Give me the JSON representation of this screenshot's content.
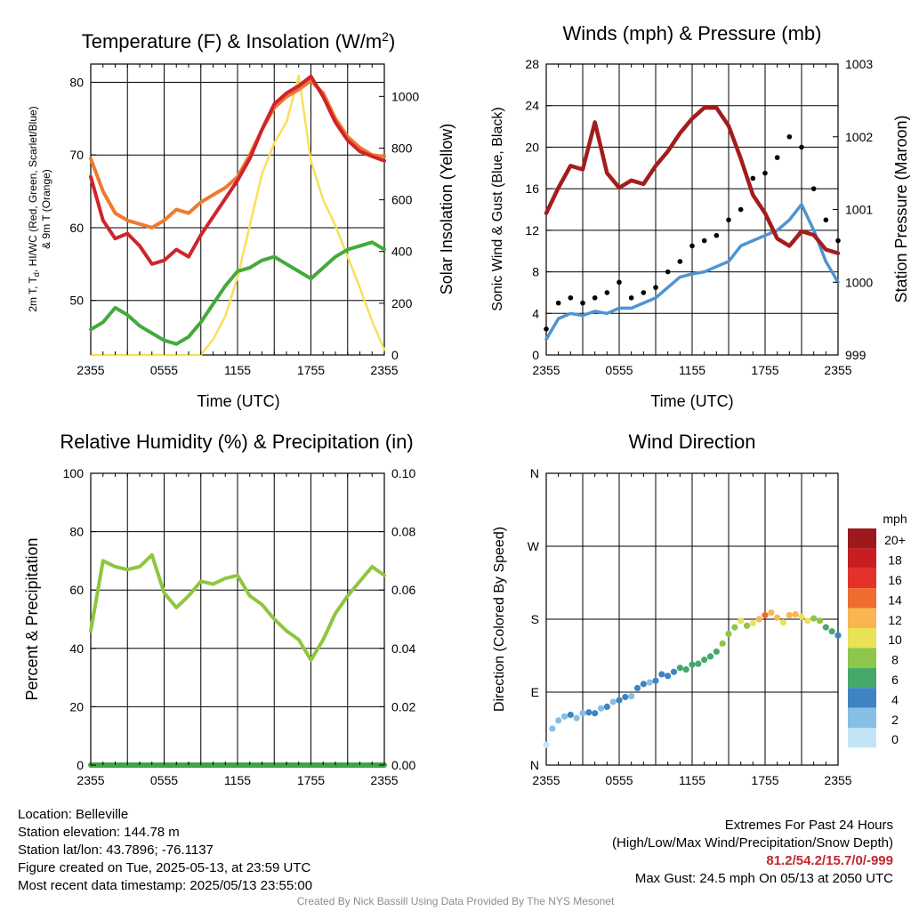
{
  "panels": {
    "temperature": {
      "title": "Temperature (F) & Insolation (W/m",
      "title_sup": "2",
      "title_close": ")",
      "ylabel_left_line1": "2m T, T",
      "ylabel_left_sub": "d",
      "ylabel_left_line1_rest": ", HI/WC (Red, Green, Scarlet/Blue)",
      "ylabel_left_line2": "& 9m T (Orange)",
      "ylabel_right": "Solar Insolation (Yellow)",
      "xlabel": "Time (UTC)"
    },
    "winds": {
      "title": "Winds (mph) & Pressure (mb)",
      "ylabel_left": "Sonic Wind & Gust (Blue, Black)",
      "ylabel_right": "Station Pressure (Maroon)",
      "xlabel": "Time (UTC)"
    },
    "humidity": {
      "title": "Relative Humidity (%) & Precipitation (in)",
      "ylabel_left": "Percent & Precipitation"
    },
    "wind_direction": {
      "title": "Wind Direction",
      "ylabel_left": "Direction (Colored By Speed)",
      "legend_title": "mph"
    }
  },
  "footer": {
    "location": "Location: Belleville",
    "elevation": "Station elevation: 144.78 m",
    "latlon": "Station lat/lon: 43.7896; -76.1137",
    "created": "Figure created on Tue, 2025-05-13, at 23:59 UTC",
    "recent": "Most recent data timestamp: 2025/05/13 23:55:00",
    "extremes_title": "Extremes For Past 24 Hours",
    "extremes_subtitle": "(High/Low/Max Wind/Precipitation/Snow Depth)",
    "extremes_values": "81.2/54.2/15.7/0/-999",
    "max_gust": "Max Gust: 24.5 mph On 05/13 at 2050 UTC",
    "credit": "Created By Nick Bassill Using Data Provided By The NYS Mesonet"
  },
  "colors": {
    "temp_red": "#d0242b",
    "temp_orange": "#ee7a30",
    "dewpoint_green": "#44aa3c",
    "insolation_yellow": "#f7e05a",
    "wind_blue": "#4e94d2",
    "gust_black": "#000000",
    "pressure_maroon": "#a31d1d",
    "rh_green": "#8ec641",
    "precip_green": "#3fa648",
    "grid": "#000000"
  },
  "chart_data": [
    {
      "id": "temperature",
      "type": "line",
      "x_ticks": [
        "2355",
        "0555",
        "1155",
        "1755",
        "2355"
      ],
      "x_range_hours": [
        0,
        24
      ],
      "ylim_left": [
        42.5,
        82.5
      ],
      "yticks_left": [
        50,
        60,
        70,
        80
      ],
      "ylim_right": [
        0,
        1125
      ],
      "yticks_right": [
        0,
        200,
        400,
        600,
        800,
        1000
      ],
      "grid": true,
      "series": [
        {
          "axis": "left",
          "color": "#d0242b",
          "x": [
            0,
            1,
            2,
            3,
            4,
            5,
            6,
            7,
            8,
            9,
            10,
            11,
            12,
            13,
            14,
            15,
            16,
            17,
            18,
            19,
            20,
            21,
            22,
            23,
            24
          ],
          "values": [
            67,
            61,
            58.5,
            59.2,
            57.5,
            55,
            55.5,
            57,
            56,
            59,
            61.5,
            64,
            66.5,
            69.5,
            73.5,
            77,
            78.5,
            79.5,
            80.8,
            78,
            74.5,
            72,
            70.5,
            69.8,
            69.2
          ]
        },
        {
          "axis": "left",
          "color": "#ee7a30",
          "x": [
            0,
            1,
            2,
            3,
            4,
            5,
            6,
            7,
            8,
            9,
            10,
            11,
            12,
            13,
            14,
            15,
            16,
            17,
            18,
            19,
            20,
            21,
            22,
            23,
            24
          ],
          "values": [
            69.5,
            65,
            62,
            61,
            60.5,
            60,
            61,
            62.5,
            62,
            63.5,
            64.5,
            65.5,
            67,
            70,
            73.5,
            76.5,
            78,
            79,
            80.2,
            78.5,
            75,
            72.5,
            71,
            70,
            69.8
          ]
        },
        {
          "axis": "left",
          "color": "#44aa3c",
          "x": [
            0,
            1,
            2,
            3,
            4,
            5,
            6,
            7,
            8,
            9,
            10,
            11,
            12,
            13,
            14,
            15,
            16,
            17,
            18,
            19,
            20,
            21,
            22,
            23,
            24
          ],
          "values": [
            46,
            47,
            49,
            48,
            46.5,
            45.5,
            44.5,
            44,
            45,
            47,
            49.5,
            52,
            54,
            54.5,
            55.5,
            56,
            55,
            54,
            53,
            54.5,
            56,
            57,
            57.5,
            58,
            57
          ]
        },
        {
          "axis": "right",
          "color": "#f7e05a",
          "x": [
            0,
            1,
            2,
            3,
            4,
            5,
            6,
            7,
            8,
            9,
            10,
            11,
            12,
            13,
            14,
            15,
            16,
            17,
            18,
            19,
            20,
            21,
            22,
            23,
            24
          ],
          "values": [
            0,
            0,
            0,
            0,
            0,
            0,
            0,
            0,
            0,
            0,
            60,
            150,
            300,
            500,
            700,
            820,
            900,
            1080,
            750,
            600,
            500,
            380,
            260,
            130,
            20
          ]
        }
      ]
    },
    {
      "id": "winds",
      "type": "line",
      "x_ticks": [
        "2355",
        "0555",
        "1155",
        "1755",
        "2355"
      ],
      "x_range_hours": [
        0,
        24
      ],
      "ylim_left": [
        0,
        28
      ],
      "yticks_left": [
        0,
        4,
        8,
        12,
        16,
        20,
        24,
        28
      ],
      "ylim_right": [
        999,
        1003
      ],
      "yticks_right": [
        999,
        1000,
        1001,
        1002,
        1003
      ],
      "grid": true,
      "series": [
        {
          "axis": "left",
          "color": "#4e94d2",
          "style": "line",
          "x": [
            0,
            1,
            2,
            3,
            4,
            5,
            6,
            7,
            8,
            9,
            10,
            11,
            12,
            13,
            14,
            15,
            16,
            17,
            18,
            19,
            20,
            21,
            22,
            23,
            24
          ],
          "values": [
            1.5,
            3.5,
            4,
            3.8,
            4.2,
            4,
            4.5,
            4.5,
            5,
            5.5,
            6.5,
            7.5,
            7.8,
            8,
            8.5,
            9,
            10.5,
            11,
            11.5,
            12,
            13,
            14.5,
            12,
            9,
            7
          ]
        },
        {
          "axis": "left",
          "color": "#000000",
          "style": "points",
          "x": [
            0,
            1,
            2,
            3,
            4,
            5,
            6,
            7,
            8,
            9,
            10,
            11,
            12,
            13,
            14,
            15,
            16,
            17,
            18,
            19,
            20,
            21,
            22,
            23,
            24
          ],
          "values": [
            2.5,
            5,
            5.5,
            5,
            5.5,
            6,
            7,
            5.5,
            6,
            6.5,
            8,
            9,
            10.5,
            11,
            11.5,
            13,
            14,
            17,
            17.5,
            19,
            21,
            20,
            16,
            13,
            11
          ]
        },
        {
          "axis": "right",
          "color": "#a31d1d",
          "style": "line",
          "x": [
            0,
            1,
            2,
            3,
            4,
            5,
            6,
            7,
            8,
            9,
            10,
            11,
            12,
            13,
            14,
            15,
            16,
            17,
            18,
            19,
            20,
            21,
            22,
            23,
            24
          ],
          "values": [
            1000.95,
            1001.3,
            1001.6,
            1001.55,
            1002.2,
            1001.5,
            1001.3,
            1001.4,
            1001.35,
            1001.6,
            1001.8,
            1002.05,
            1002.25,
            1002.4,
            1002.4,
            1002.15,
            1001.7,
            1001.2,
            1000.95,
            1000.6,
            1000.5,
            1000.7,
            1000.65,
            1000.45,
            1000.4
          ]
        }
      ]
    },
    {
      "id": "humidity",
      "type": "line",
      "x_ticks": [
        "2355",
        "0555",
        "1155",
        "1755",
        "2355"
      ],
      "x_range_hours": [
        0,
        24
      ],
      "ylim_left": [
        0,
        100
      ],
      "yticks_left": [
        0,
        20,
        40,
        60,
        80,
        100
      ],
      "ylim_right": [
        0,
        0.1
      ],
      "yticks_right": [
        "0.00",
        "0.02",
        "0.04",
        "0.06",
        "0.08",
        "0.10"
      ],
      "grid": true,
      "series": [
        {
          "axis": "left",
          "color": "#8ec641",
          "x": [
            0,
            1,
            2,
            3,
            4,
            5,
            6,
            7,
            8,
            9,
            10,
            11,
            12,
            13,
            14,
            15,
            16,
            17,
            18,
            19,
            20,
            21,
            22,
            23,
            24
          ],
          "values": [
            46,
            70,
            68,
            67,
            68,
            72,
            59,
            54,
            58,
            63,
            62,
            64,
            65,
            58,
            55,
            50,
            46,
            43,
            36,
            43,
            52,
            58,
            63,
            68,
            65
          ]
        },
        {
          "axis": "right",
          "color": "#3fa648",
          "x": [
            0,
            24
          ],
          "values": [
            0,
            0
          ]
        }
      ]
    },
    {
      "id": "wind_direction",
      "type": "scatter",
      "x_ticks": [
        "2355",
        "0555",
        "1155",
        "1755",
        "2355"
      ],
      "x_range_hours": [
        0,
        24
      ],
      "ylim": [
        0,
        360
      ],
      "ytick_labels": [
        "N",
        "E",
        "S",
        "W",
        "N"
      ],
      "yticks": [
        0,
        90,
        180,
        270,
        360
      ],
      "legend_title": "mph",
      "color_scale": [
        {
          "label": "0",
          "color": "#c3e4f7"
        },
        {
          "label": "2",
          "color": "#86bfe6"
        },
        {
          "label": "4",
          "color": "#3f84c2"
        },
        {
          "label": "6",
          "color": "#46a86a"
        },
        {
          "label": "8",
          "color": "#8cc64a"
        },
        {
          "label": "10",
          "color": "#e9e156"
        },
        {
          "label": "12",
          "color": "#f9b552"
        },
        {
          "label": "14",
          "color": "#ef6c2f"
        },
        {
          "label": "16",
          "color": "#e2322b"
        },
        {
          "label": "18",
          "color": "#c81e21"
        },
        {
          "label": "20+",
          "color": "#9c1a1c"
        }
      ],
      "x": [
        0,
        0.5,
        1,
        1.5,
        2,
        2.5,
        3,
        3.5,
        4,
        4.5,
        5,
        5.5,
        6,
        6.5,
        7,
        7.5,
        8,
        8.5,
        9,
        9.5,
        10,
        10.5,
        11,
        11.5,
        12,
        12.5,
        13,
        13.5,
        14,
        14.5,
        15,
        15.5,
        16,
        16.5,
        17,
        17.5,
        18,
        18.5,
        19,
        19.5,
        20,
        20.5,
        21,
        21.5,
        22,
        22.5,
        23,
        23.5,
        24
      ],
      "y": [
        25,
        45,
        55,
        60,
        62,
        58,
        64,
        65,
        64,
        70,
        72,
        78,
        80,
        84,
        85,
        95,
        100,
        102,
        104,
        112,
        110,
        115,
        120,
        118,
        124,
        125,
        130,
        134,
        140,
        150,
        162,
        170,
        178,
        172,
        175,
        180,
        185,
        188,
        182,
        176,
        185,
        186,
        183,
        178,
        181,
        178,
        170,
        165,
        160
      ],
      "speed": [
        1,
        2,
        3,
        3,
        4,
        3,
        3,
        4,
        4,
        3,
        4,
        3,
        4,
        4,
        3,
        4,
        4,
        3,
        4,
        5,
        5,
        5,
        6,
        6,
        6,
        7,
        7,
        6,
        7,
        8,
        9,
        9,
        11,
        9,
        10,
        12,
        14,
        13,
        12,
        11,
        13,
        12,
        11,
        10,
        9,
        8,
        7,
        6,
        5
      ]
    }
  ]
}
